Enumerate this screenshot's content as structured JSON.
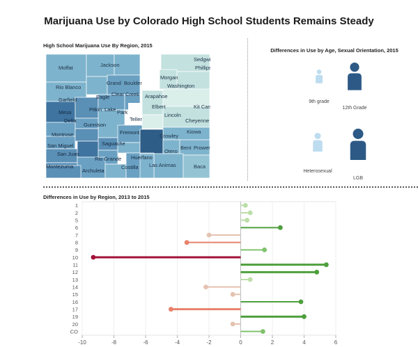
{
  "title": "Marijuana Use by Colorado High School Students Remains Steady",
  "map": {
    "title": "High School Marijuana Use By Region, 2015",
    "labels": [
      "Sedgwick",
      "Phillips",
      "Moffat",
      "Jackson",
      "Morgan",
      "Washington",
      "Rio Blanco",
      "Grand",
      "Boulder",
      "Arapahoe",
      "Garfield",
      "Eagle",
      "Clear Creek",
      "Elbert",
      "Kit Carson",
      "Mesa",
      "Pitkin",
      "Lake",
      "Park",
      "Lincoln",
      "Cheyenne",
      "Delta",
      "Gunnison",
      "Teller",
      "Fremont",
      "Kiowa",
      "Montrose",
      "Crowley",
      "San Miguel",
      "Saguache",
      "Bent",
      "Prowers",
      "San Juan",
      "Otero",
      "Rio Grande",
      "Huerfano",
      "Montezuma",
      "Archuleta",
      "Costilla",
      "Las Animas",
      "Baca"
    ]
  },
  "demographics": {
    "title": "Differences in Use by Age, Sexual Orientation, 2015",
    "groups": [
      {
        "label": "9th grade",
        "level": "low"
      },
      {
        "label": "12th Grade",
        "level": "high"
      },
      {
        "label": "Heterosexual",
        "level": "low"
      },
      {
        "label": "LGB",
        "level": "high"
      }
    ]
  },
  "chart_data": {
    "type": "lollipop",
    "title": "Differences in Use by Region, 2013 to 2015",
    "categories": [
      "1",
      "2",
      "5",
      "6",
      "7",
      "8",
      "9",
      "10",
      "11",
      "12",
      "13",
      "14",
      "15",
      "16",
      "17",
      "19",
      "20",
      "CO"
    ],
    "values": [
      0.3,
      0.6,
      0.4,
      2.5,
      -2.0,
      -3.4,
      1.5,
      -9.3,
      5.4,
      4.8,
      0.6,
      -2.2,
      -0.5,
      3.8,
      -4.4,
      4.0,
      -0.5,
      1.4
    ],
    "xlim": [
      -10,
      6
    ],
    "xticks": [
      -10,
      -8,
      -6,
      -4,
      -2,
      0,
      2,
      4,
      6
    ],
    "colors": {
      "neg_strong": "#a3123a",
      "neg_mid": "#e8826c",
      "neg_light": "#e4c2b0",
      "pos_strong": "#4e9f3d",
      "pos_mid": "#82c26e",
      "pos_light": "#bcdea9"
    }
  }
}
